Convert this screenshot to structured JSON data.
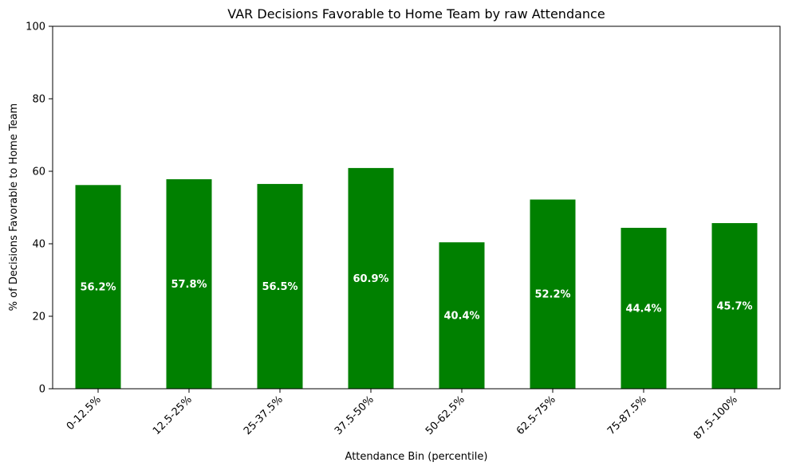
{
  "chart_data": {
    "type": "bar",
    "title": "VAR Decisions Favorable to Home Team by raw Attendance",
    "xlabel": "Attendance Bin (percentile)",
    "ylabel": "% of Decisions Favorable to Home Team",
    "categories": [
      "0-12.5%",
      "12.5-25%",
      "25-37.5%",
      "37.5-50%",
      "50-62.5%",
      "62.5-75%",
      "75-87.5%",
      "87.5-100%"
    ],
    "values": [
      56.2,
      57.8,
      56.5,
      60.9,
      40.4,
      52.2,
      44.4,
      45.7
    ],
    "value_labels": [
      "56.2%",
      "57.8%",
      "56.5%",
      "60.9%",
      "40.4%",
      "52.2%",
      "44.4%",
      "45.7%"
    ],
    "ylim": [
      0,
      100
    ],
    "yticks": [
      0,
      20,
      40,
      60,
      80,
      100
    ],
    "ytick_labels": [
      "0",
      "20",
      "40",
      "60",
      "80",
      "100"
    ],
    "bar_color": "#008000",
    "grid": false,
    "legend": "none"
  }
}
